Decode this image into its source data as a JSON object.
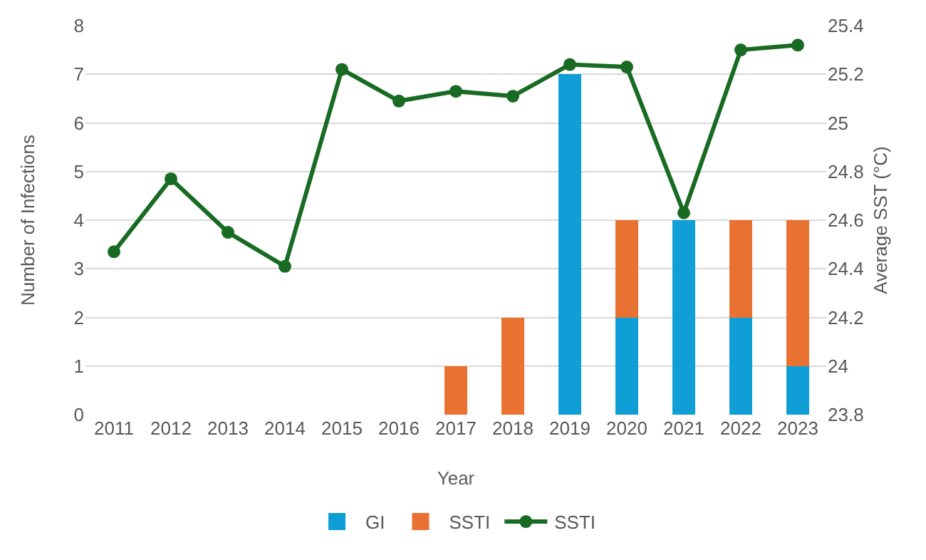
{
  "chart_data": {
    "type": "bar",
    "stacked": true,
    "xlabel": "Year",
    "ylabel": "Number of Infections",
    "y2label": "Average SST (°C)",
    "categories": [
      "2011",
      "2012",
      "2013",
      "2014",
      "2015",
      "2016",
      "2017",
      "2018",
      "2019",
      "2020",
      "2021",
      "2022",
      "2023"
    ],
    "series": [
      {
        "name": "GI",
        "color": "#0f9ed5",
        "values": [
          0,
          0,
          0,
          0,
          0,
          0,
          0,
          0,
          7,
          2,
          4,
          2,
          1
        ]
      },
      {
        "name": "SSTI",
        "color": "#e97132",
        "values": [
          0,
          0,
          0,
          0,
          0,
          0,
          1,
          2,
          0,
          2,
          0,
          2,
          3
        ]
      },
      {
        "name": "SSTI",
        "type": "line",
        "axis": "y2",
        "color": "#196b24",
        "marker": "circle",
        "values": [
          24.47,
          24.77,
          24.55,
          24.41,
          25.22,
          25.09,
          25.13,
          25.11,
          25.24,
          25.23,
          24.63,
          25.3,
          25.32
        ]
      }
    ],
    "ylim": [
      0,
      8
    ],
    "yticks": [
      0,
      1,
      2,
      3,
      4,
      5,
      6,
      7,
      8
    ],
    "y2lim": [
      23.8,
      25.4
    ],
    "y2ticks": [
      23.8,
      24,
      24.2,
      24.4,
      24.6,
      24.8,
      25,
      25.2,
      25.4
    ],
    "grid": "y",
    "legend": "bottom"
  }
}
